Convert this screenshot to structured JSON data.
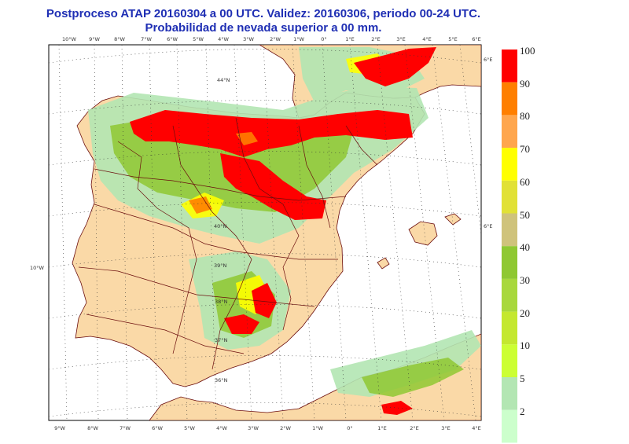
{
  "header": {
    "title_line1": "Postproceso ATAP 20160304 a 00 UTC. Validez: 20160306, periodo 00-24 UTC.",
    "title_line2": "Probabilidad de nevada superior a 00 mm."
  },
  "colorbar": {
    "levels": [
      {
        "label": "100",
        "color": "#ff0000"
      },
      {
        "label": "90",
        "color": "#ff7f00"
      },
      {
        "label": "80",
        "color": "#ffa64d"
      },
      {
        "label": "70",
        "color": "#ffff00"
      },
      {
        "label": "60",
        "color": "#e1e136"
      },
      {
        "label": "50",
        "color": "#cfc37b"
      },
      {
        "label": "40",
        "color": "#8fc832"
      },
      {
        "label": "30",
        "color": "#a8d83c"
      },
      {
        "label": "20",
        "color": "#c4e82f"
      },
      {
        "label": "10",
        "color": "#ccff33"
      },
      {
        "label": "5",
        "color": "#b3e6b3"
      },
      {
        "label": "2",
        "color": "#ccffcc"
      }
    ]
  },
  "axis_top": [
    "10°W",
    "9°W",
    "8°W",
    "7°W",
    "6°W",
    "5°W",
    "4°W",
    "3°W",
    "2°W",
    "1°W",
    "0°",
    "1°E",
    "2°E",
    "3°E",
    "4°E",
    "5°E",
    "6°E"
  ],
  "axis_bottom": [
    "9°W",
    "8°W",
    "7°W",
    "6°W",
    "5°W",
    "4°W",
    "3°W",
    "2°W",
    "1°W",
    "0°",
    "1°E",
    "2°E",
    "3°E",
    "4°E"
  ],
  "lat_labels": [
    "44°N",
    "40°N",
    "39°N",
    "38°N",
    "37°N",
    "36°N"
  ],
  "side_labels": {
    "left": "10°W",
    "right_top": "6°E",
    "right_mid": "6°E"
  },
  "colors": {
    "land": "#fad9a7",
    "sea": "#ffffff",
    "border": "#6b0d0d",
    "title": "#1f2fb4"
  }
}
